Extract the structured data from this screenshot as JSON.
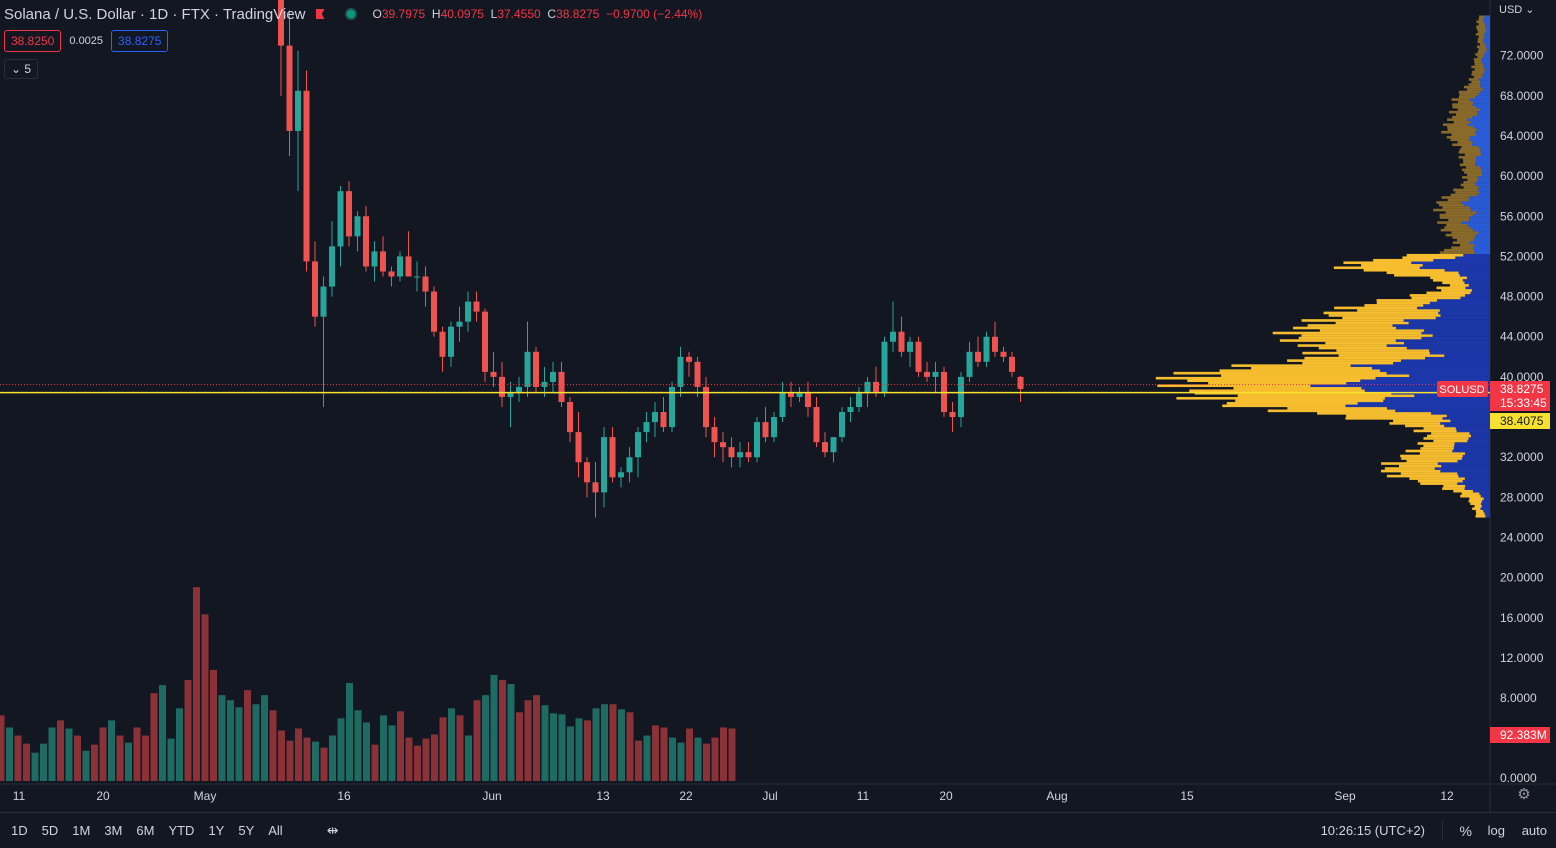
{
  "header": {
    "symbol_line": "Solana / U.S. Dollar · 1D · FTX · TradingView",
    "ohlc": [
      {
        "k": "O",
        "v": "39.7975"
      },
      {
        "k": "H",
        "v": "40.0975"
      },
      {
        "k": "L",
        "v": "37.4550"
      },
      {
        "k": "C",
        "v": "38.8275"
      }
    ],
    "change": "−0.9700 (−2.44%)",
    "bid": "38.8250",
    "spread": "0.0025",
    "ask": "38.8275",
    "indicator_toggle": "⌄ 5"
  },
  "price_scale": {
    "currency": "USD ⌄",
    "symbol_label": "SOLUSD",
    "last_price": "38.8275",
    "countdown": "15:33:45",
    "poc_price": "38.4075",
    "volume_label": "92.383M"
  },
  "bottom_bar": {
    "ranges": [
      "1D",
      "5D",
      "1M",
      "3M",
      "6M",
      "YTD",
      "1Y",
      "5Y",
      "All"
    ],
    "calendar_icon": "calendar-range-icon",
    "time": "10:26:15 (UTC+2)",
    "percent": "%",
    "log": "log",
    "auto": "auto"
  },
  "colors": {
    "background": "#131722",
    "up": "#26a69a",
    "down": "#ef5350",
    "vol_up": "#1e6b63",
    "vol_down": "#8a3237",
    "vp_up": "#f6be2f",
    "vp_down": "#1c37a9",
    "vp_up_va": "#8a6a2a",
    "vp_down_va": "#2a5bd7",
    "current_line": "#f6e12f"
  },
  "chart_data": {
    "type": "candlestick",
    "symbol": "SOLUSD",
    "exchange": "FTX",
    "interval": "1D",
    "ylim": [
      0,
      76
    ],
    "y_ticks": [
      "72.0000",
      "68.0000",
      "64.0000",
      "60.0000",
      "56.0000",
      "52.0000",
      "48.0000",
      "44.0000",
      "40.0000",
      "32.0000",
      "28.0000",
      "24.0000",
      "20.0000",
      "16.0000",
      "12.0000",
      "8.0000",
      "0.0000"
    ],
    "x_ticks": [
      "11",
      "20",
      "May",
      "16",
      "Jun",
      "13",
      "22",
      "Jul",
      "11",
      "20",
      "Aug",
      "15",
      "Sep",
      "12"
    ],
    "candles": [
      {
        "o": 97.5,
        "h": 108.0,
        "l": 68.0,
        "c": 73.0
      },
      {
        "o": 73.0,
        "h": 76.5,
        "l": 62.0,
        "c": 64.5
      },
      {
        "o": 64.5,
        "h": 72.5,
        "l": 58.5,
        "c": 68.5
      },
      {
        "o": 68.5,
        "h": 70.5,
        "l": 50.5,
        "c": 51.5
      },
      {
        "o": 51.5,
        "h": 53.5,
        "l": 45.0,
        "c": 46.0
      },
      {
        "o": 46.0,
        "h": 50.0,
        "l": 37.0,
        "c": 49.0
      },
      {
        "o": 49.0,
        "h": 55.5,
        "l": 48.0,
        "c": 53.0
      },
      {
        "o": 53.0,
        "h": 59.0,
        "l": 51.0,
        "c": 58.5
      },
      {
        "o": 58.5,
        "h": 59.5,
        "l": 53.0,
        "c": 54.0
      },
      {
        "o": 54.0,
        "h": 56.5,
        "l": 52.5,
        "c": 56.0
      },
      {
        "o": 56.0,
        "h": 57.0,
        "l": 50.5,
        "c": 51.0
      },
      {
        "o": 51.0,
        "h": 53.5,
        "l": 49.5,
        "c": 52.5
      },
      {
        "o": 52.5,
        "h": 54.0,
        "l": 50.0,
        "c": 50.5
      },
      {
        "o": 50.5,
        "h": 51.0,
        "l": 49.0,
        "c": 50.0
      },
      {
        "o": 50.0,
        "h": 52.5,
        "l": 49.5,
        "c": 52.0
      },
      {
        "o": 52.0,
        "h": 54.5,
        "l": 50.0,
        "c": 50.0
      },
      {
        "o": 50.0,
        "h": 51.5,
        "l": 48.5,
        "c": 50.0
      },
      {
        "o": 50.0,
        "h": 51.0,
        "l": 47.0,
        "c": 48.5
      },
      {
        "o": 48.5,
        "h": 49.0,
        "l": 44.0,
        "c": 44.5
      },
      {
        "o": 44.5,
        "h": 45.0,
        "l": 40.5,
        "c": 42.0
      },
      {
        "o": 42.0,
        "h": 45.5,
        "l": 41.0,
        "c": 45.0
      },
      {
        "o": 45.0,
        "h": 47.0,
        "l": 43.5,
        "c": 45.5
      },
      {
        "o": 45.5,
        "h": 48.5,
        "l": 44.5,
        "c": 47.5
      },
      {
        "o": 47.5,
        "h": 48.5,
        "l": 45.5,
        "c": 46.5
      },
      {
        "o": 46.5,
        "h": 46.8,
        "l": 39.5,
        "c": 40.5
      },
      {
        "o": 40.5,
        "h": 42.5,
        "l": 39.0,
        "c": 40.0
      },
      {
        "o": 40.0,
        "h": 41.5,
        "l": 37.0,
        "c": 38.0
      },
      {
        "o": 38.0,
        "h": 39.5,
        "l": 35.0,
        "c": 38.5
      },
      {
        "o": 38.5,
        "h": 40.0,
        "l": 37.5,
        "c": 39.0
      },
      {
        "o": 39.0,
        "h": 45.5,
        "l": 38.0,
        "c": 42.5
      },
      {
        "o": 42.5,
        "h": 43.0,
        "l": 38.5,
        "c": 39.0
      },
      {
        "o": 39.0,
        "h": 41.0,
        "l": 38.0,
        "c": 39.5
      },
      {
        "o": 39.5,
        "h": 41.5,
        "l": 38.5,
        "c": 40.5
      },
      {
        "o": 40.5,
        "h": 41.5,
        "l": 37.0,
        "c": 37.5
      },
      {
        "o": 37.5,
        "h": 38.0,
        "l": 33.5,
        "c": 34.5
      },
      {
        "o": 34.5,
        "h": 36.5,
        "l": 30.0,
        "c": 31.5
      },
      {
        "o": 31.5,
        "h": 32.0,
        "l": 28.0,
        "c": 29.5
      },
      {
        "o": 29.5,
        "h": 31.5,
        "l": 26.0,
        "c": 28.5
      },
      {
        "o": 28.5,
        "h": 35.0,
        "l": 27.0,
        "c": 34.0
      },
      {
        "o": 34.0,
        "h": 35.0,
        "l": 29.5,
        "c": 30.0
      },
      {
        "o": 30.0,
        "h": 31.0,
        "l": 29.0,
        "c": 30.5
      },
      {
        "o": 30.5,
        "h": 33.0,
        "l": 29.5,
        "c": 32.0
      },
      {
        "o": 32.0,
        "h": 35.0,
        "l": 30.0,
        "c": 34.5
      },
      {
        "o": 34.5,
        "h": 36.5,
        "l": 33.5,
        "c": 35.5
      },
      {
        "o": 35.5,
        "h": 37.5,
        "l": 34.0,
        "c": 36.5
      },
      {
        "o": 36.5,
        "h": 38.0,
        "l": 34.5,
        "c": 35.0
      },
      {
        "o": 35.0,
        "h": 39.5,
        "l": 34.5,
        "c": 39.0
      },
      {
        "o": 39.0,
        "h": 43.0,
        "l": 38.0,
        "c": 42.0
      },
      {
        "o": 42.0,
        "h": 42.5,
        "l": 40.0,
        "c": 41.5
      },
      {
        "o": 41.5,
        "h": 42.0,
        "l": 38.0,
        "c": 39.0
      },
      {
        "o": 39.0,
        "h": 40.0,
        "l": 34.0,
        "c": 35.0
      },
      {
        "o": 35.0,
        "h": 36.0,
        "l": 32.0,
        "c": 33.5
      },
      {
        "o": 33.5,
        "h": 34.5,
        "l": 31.5,
        "c": 33.0
      },
      {
        "o": 33.0,
        "h": 34.0,
        "l": 31.0,
        "c": 32.0
      },
      {
        "o": 32.0,
        "h": 33.5,
        "l": 31.0,
        "c": 32.5
      },
      {
        "o": 32.5,
        "h": 33.5,
        "l": 31.5,
        "c": 32.0
      },
      {
        "o": 32.0,
        "h": 36.0,
        "l": 31.5,
        "c": 35.5
      },
      {
        "o": 35.5,
        "h": 37.0,
        "l": 33.5,
        "c": 34.0
      },
      {
        "o": 34.0,
        "h": 36.5,
        "l": 33.5,
        "c": 36.0
      },
      {
        "o": 36.0,
        "h": 39.5,
        "l": 35.5,
        "c": 38.5
      },
      {
        "o": 38.5,
        "h": 39.5,
        "l": 37.0,
        "c": 38.0
      },
      {
        "o": 38.0,
        "h": 39.0,
        "l": 37.5,
        "c": 38.5
      },
      {
        "o": 38.5,
        "h": 39.5,
        "l": 36.0,
        "c": 37.0
      },
      {
        "o": 37.0,
        "h": 38.0,
        "l": 33.0,
        "c": 33.5
      },
      {
        "o": 33.5,
        "h": 34.5,
        "l": 32.0,
        "c": 32.5
      },
      {
        "o": 32.5,
        "h": 34.0,
        "l": 31.5,
        "c": 34.0
      },
      {
        "o": 34.0,
        "h": 37.0,
        "l": 33.5,
        "c": 36.5
      },
      {
        "o": 36.5,
        "h": 38.0,
        "l": 35.5,
        "c": 37.0
      },
      {
        "o": 37.0,
        "h": 39.0,
        "l": 36.5,
        "c": 38.5
      },
      {
        "o": 38.5,
        "h": 40.0,
        "l": 37.0,
        "c": 39.5
      },
      {
        "o": 39.5,
        "h": 41.0,
        "l": 38.0,
        "c": 38.5
      },
      {
        "o": 38.5,
        "h": 44.0,
        "l": 38.0,
        "c": 43.5
      },
      {
        "o": 43.5,
        "h": 47.5,
        "l": 42.5,
        "c": 44.5
      },
      {
        "o": 44.5,
        "h": 46.0,
        "l": 42.0,
        "c": 42.5
      },
      {
        "o": 42.5,
        "h": 44.0,
        "l": 41.0,
        "c": 43.5
      },
      {
        "o": 43.5,
        "h": 44.0,
        "l": 40.0,
        "c": 40.5
      },
      {
        "o": 40.5,
        "h": 41.5,
        "l": 39.5,
        "c": 40.0
      },
      {
        "o": 40.0,
        "h": 41.5,
        "l": 38.5,
        "c": 40.5
      },
      {
        "o": 40.5,
        "h": 41.0,
        "l": 36.0,
        "c": 36.5
      },
      {
        "o": 36.5,
        "h": 37.5,
        "l": 34.5,
        "c": 36.0
      },
      {
        "o": 36.0,
        "h": 40.5,
        "l": 35.0,
        "c": 40.0
      },
      {
        "o": 40.0,
        "h": 43.5,
        "l": 39.5,
        "c": 42.5
      },
      {
        "o": 42.5,
        "h": 44.0,
        "l": 41.0,
        "c": 41.5
      },
      {
        "o": 41.5,
        "h": 44.5,
        "l": 41.0,
        "c": 44.0
      },
      {
        "o": 44.0,
        "h": 45.5,
        "l": 42.0,
        "c": 42.5
      },
      {
        "o": 42.5,
        "h": 43.0,
        "l": 41.5,
        "c": 42.0
      },
      {
        "o": 42.0,
        "h": 42.5,
        "l": 40.0,
        "c": 40.5
      },
      {
        "o": 40.0,
        "h": 40.1,
        "l": 37.5,
        "c": 38.8
      }
    ],
    "volume_ylim": [
      0,
      20
    ],
    "volume": [
      3.2,
      6.5,
      5.3,
      4.5,
      3.7,
      2.8,
      3.7,
      5.3,
      6.0,
      5.2,
      4.5,
      3.0,
      3.6,
      5.3,
      6.0,
      4.5,
      3.8,
      5.3,
      4.5,
      8.7,
      9.5,
      4.2,
      7.2,
      10.0,
      19.2,
      16.5,
      11.0,
      8.5,
      8.0,
      7.3,
      9.0,
      7.6,
      8.5,
      7.0,
      5.0,
      4.0,
      5.2,
      4.3,
      3.9,
      3.3,
      4.5,
      6.2,
      9.7,
      7.0,
      5.8,
      3.6,
      6.5,
      5.5,
      6.9,
      4.3,
      3.5,
      4.2,
      4.6,
      6.3,
      7.2,
      6.5,
      4.5,
      8.0,
      8.5,
      10.5,
      10.0,
      9.6,
      6.8,
      8.0,
      8.5,
      7.5,
      6.7,
      6.6,
      5.4,
      6.2,
      6.0,
      7.2,
      7.6,
      7.6,
      7.1,
      6.8,
      4.0,
      4.5,
      5.5,
      5.3,
      4.3,
      3.8,
      5.2,
      4.3,
      3.7,
      4.3,
      5.3,
      5.2
    ],
    "current_price": 38.8275,
    "volume_profile_note": ""
  }
}
